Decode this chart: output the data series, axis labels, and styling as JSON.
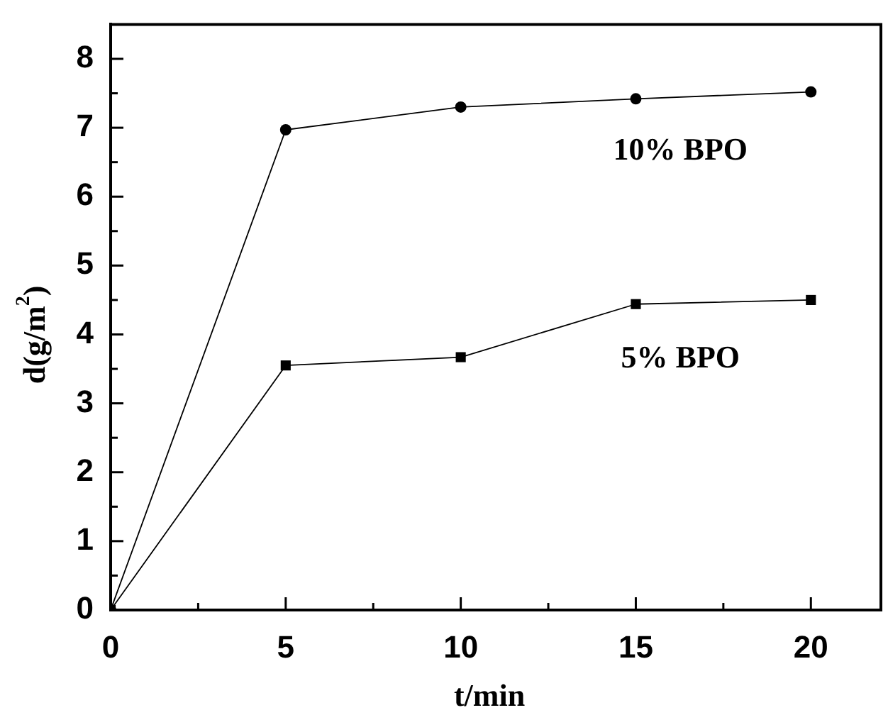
{
  "chart_data": {
    "type": "line",
    "xlabel": "t/min",
    "ylabel": "d(g/m$^{2}$)",
    "x": [
      0,
      5,
      10,
      15,
      20
    ],
    "series": [
      {
        "name": "10% BPO",
        "color": "#000000",
        "marker": "circle",
        "values": [
          0,
          6.97,
          7.3,
          7.42,
          7.52
        ]
      },
      {
        "name": "5% BPO",
        "color": "#000000",
        "marker": "square",
        "values": [
          0,
          3.55,
          3.67,
          4.44,
          4.5
        ]
      }
    ],
    "xlim": [
      0,
      22
    ],
    "ylim": [
      0,
      8.5
    ],
    "xticks": [
      0,
      {
        "value": 2.5,
        "label": null
      },
      5,
      {
        "value": 7.5,
        "label": null
      },
      10,
      {
        "value": 12.5,
        "label": null
      },
      15,
      {
        "value": 17.5,
        "label": null
      },
      20
    ],
    "yticks": [
      0,
      {
        "value": 0.5,
        "label": null
      },
      1,
      {
        "value": 1.5,
        "label": null
      },
      2,
      {
        "value": 2.5,
        "label": null
      },
      3,
      {
        "value": 3.5,
        "label": null
      },
      4,
      {
        "value": 4.5,
        "label": null
      },
      5,
      {
        "value": 5.5,
        "label": null
      },
      6,
      {
        "value": 6.5,
        "label": null
      },
      7,
      {
        "value": 7.5,
        "label": null
      },
      8
    ],
    "legend": false,
    "grid": false,
    "line_style": "solid"
  }
}
